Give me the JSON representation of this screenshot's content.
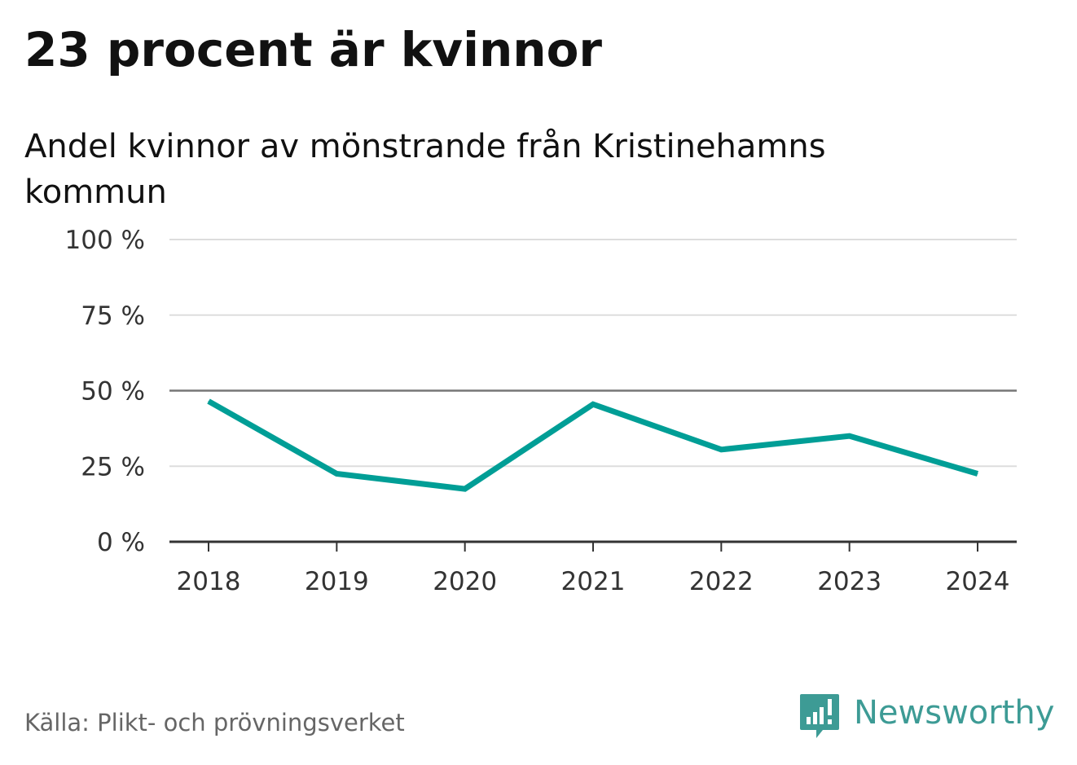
{
  "chart_data": {
    "type": "line",
    "title": "23 procent är kvinnor",
    "subtitle": "Andel kvinnor av mönstrande från Kristinehamns kommun",
    "categories": [
      "2018",
      "2019",
      "2020",
      "2021",
      "2022",
      "2023",
      "2024"
    ],
    "series": [
      {
        "values": [
          46.5,
          22.5,
          17.5,
          45.5,
          30.5,
          35,
          22.5
        ]
      }
    ],
    "ylim": [
      0,
      100
    ],
    "yticks": [
      0,
      25,
      50,
      75,
      100
    ],
    "ytick_labels": [
      "0 %",
      "25 %",
      "50 %",
      "75 %",
      "100 %"
    ],
    "reference_line": 50,
    "grid": true,
    "legend": "none",
    "colors": {
      "line": "#009e96",
      "grid": "#dddddd",
      "reference": "#777777",
      "axis": "#333333"
    }
  },
  "footer": {
    "source": "Källa: Plikt- och prövningsverket",
    "brand": "Newsworthy",
    "brand_color": "#3d9b95",
    "brand_icon": "newsworthy-logo-icon"
  }
}
